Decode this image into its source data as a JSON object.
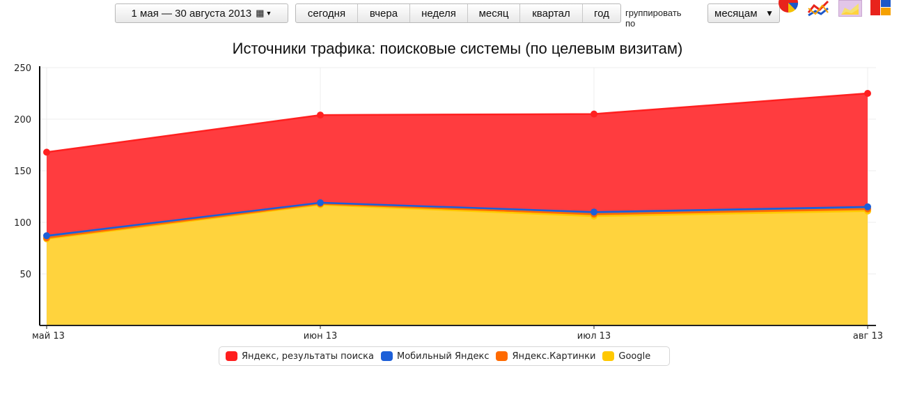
{
  "toolbar": {
    "date_range": "1 мая — 30 августа 2013",
    "calendar_icon": "calendar-grid-icon",
    "periods": [
      "сегодня",
      "вчера",
      "неделя",
      "месяц",
      "квартал",
      "год"
    ],
    "group_label": "группировать по",
    "group_value": "месяцам",
    "chart_type_icons": [
      "pie-chart-icon",
      "line-chart-icon",
      "area-chart-icon",
      "treemap-icon"
    ]
  },
  "chart_data": {
    "type": "area",
    "stacked": true,
    "title": "Источники трафика: поисковые системы (по целевым визитам)",
    "categories": [
      "май 13",
      "июн 13",
      "июл 13",
      "авг 13"
    ],
    "ylim": [
      0,
      250
    ],
    "yticks": [
      50,
      100,
      150,
      200,
      250
    ],
    "grid": true,
    "legend_position": "bottom",
    "series": [
      {
        "name": "Яндекс, результаты поиска",
        "color": "#ff2020",
        "values": [
          81,
          85,
          95,
          110
        ]
      },
      {
        "name": "Мобильный Яндекс",
        "color": "#1c5fd8",
        "values": [
          2,
          1,
          2,
          2
        ]
      },
      {
        "name": "Яндекс.Картинки",
        "color": "#ff6a00",
        "values": [
          1,
          1,
          2,
          2
        ]
      },
      {
        "name": "Google",
        "color": "#ffc800",
        "values": [
          84,
          117,
          106,
          111
        ]
      }
    ]
  }
}
